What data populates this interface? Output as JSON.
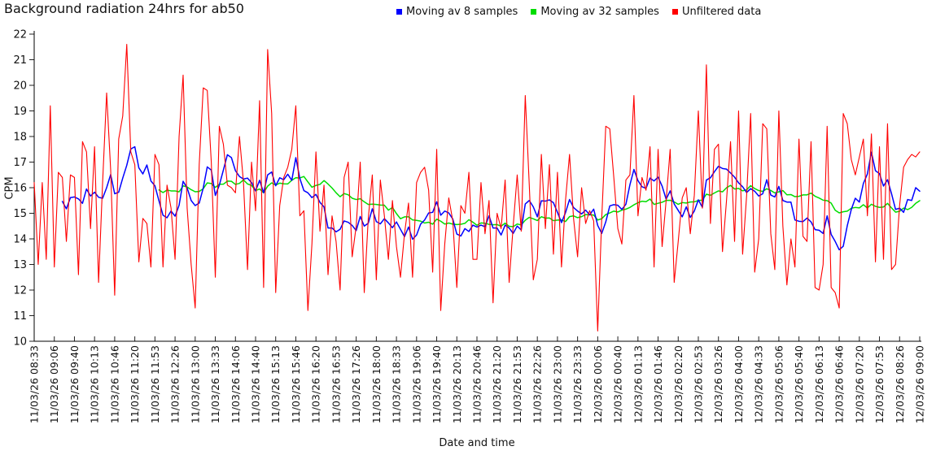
{
  "title": "Background radiation 24hrs for ab50",
  "chart_data": {
    "type": "line",
    "title": "Background radiation 24hrs for ab50",
    "xlabel": "Date and time",
    "ylabel": "CPM",
    "ylim": [
      10,
      22
    ],
    "ytick_step": 1,
    "grid": false,
    "legend_position": "top-center",
    "x_tick_labels": [
      "11/03/26 08:33",
      "11/03/26 09:06",
      "11/03/26 09:40",
      "11/03/26 10:13",
      "11/03/26 10:46",
      "11/03/26 11:20",
      "11/03/26 11:53",
      "11/03/26 12:26",
      "11/03/26 13:00",
      "11/03/26 13:33",
      "11/03/26 14:06",
      "11/03/26 14:40",
      "11/03/26 15:13",
      "11/03/26 15:46",
      "11/03/26 16:20",
      "11/03/26 16:53",
      "11/03/26 17:26",
      "11/03/26 18:00",
      "11/03/26 18:33",
      "11/03/26 19:06",
      "11/03/26 19:40",
      "11/03/26 20:13",
      "11/03/26 20:46",
      "11/03/26 21:20",
      "11/03/26 21:53",
      "11/03/26 22:26",
      "11/03/26 23:00",
      "11/03/26 23:33",
      "12/03/26 00:06",
      "12/03/26 00:40",
      "12/03/26 01:13",
      "12/03/26 01:46",
      "12/03/26 02:20",
      "12/03/26 02:53",
      "12/03/26 03:26",
      "12/03/26 04:00",
      "12/03/26 04:33",
      "12/03/26 05:06",
      "12/03/26 05:40",
      "12/03/26 06:13",
      "12/03/26 06:46",
      "12/03/26 07:20",
      "12/03/26 07:53",
      "12/03/26 08:26",
      "12/03/26 09:00"
    ],
    "samples_per_tick_interval": 5,
    "series": [
      {
        "name": "Moving av 8 samples",
        "color": "#0000ff",
        "derived": "moving_average",
        "window": 8,
        "source": "Unfiltered data"
      },
      {
        "name": "Moving av 32 samples",
        "color": "#00dd00",
        "derived": "moving_average",
        "window": 32,
        "source": "Unfiltered data"
      },
      {
        "name": "Unfiltered data",
        "color": "#ff0000",
        "values": [
          16.2,
          13.0,
          16.2,
          13.2,
          19.2,
          12.9,
          16.6,
          16.4,
          13.9,
          16.5,
          16.4,
          12.6,
          17.8,
          17.4,
          14.4,
          17.6,
          12.3,
          16.2,
          19.7,
          16.7,
          11.8,
          17.9,
          18.8,
          21.6,
          17.4,
          16.9,
          13.1,
          14.8,
          14.6,
          12.9,
          17.3,
          16.9,
          12.9,
          16.1,
          15.2,
          13.2,
          18.0,
          20.4,
          15.2,
          13.0,
          11.3,
          16.9,
          19.9,
          19.8,
          17.0,
          12.5,
          18.4,
          17.7,
          16.1,
          16.0,
          15.8,
          18.0,
          16.2,
          12.8,
          17.0,
          15.1,
          19.4,
          12.1,
          21.4,
          18.9,
          11.9,
          15.3,
          16.4,
          16.8,
          17.5,
          19.2,
          14.9,
          15.1,
          11.2,
          13.8,
          17.4,
          14.3,
          16.1,
          12.6,
          14.9,
          13.9,
          12.0,
          16.4,
          17.0,
          13.3,
          14.5,
          17.0,
          11.9,
          14.8,
          16.5,
          12.4,
          16.3,
          14.9,
          13.2,
          15.5,
          13.7,
          12.5,
          14.2,
          15.4,
          12.5,
          16.2,
          16.6,
          16.8,
          15.9,
          12.7,
          17.5,
          11.2,
          13.8,
          15.6,
          14.7,
          12.1,
          15.3,
          15.0,
          16.6,
          13.2,
          13.2,
          16.2,
          14.2,
          15.5,
          11.5,
          15.0,
          14.4,
          16.3,
          12.3,
          14.5,
          16.5,
          14.3,
          19.6,
          16.1,
          12.4,
          13.2,
          17.3,
          14.4,
          16.9,
          13.4,
          16.6,
          12.9,
          15.5,
          17.3,
          14.8,
          13.3,
          16.0,
          14.6,
          15.1,
          14.7,
          10.4,
          14.8,
          18.4,
          18.3,
          16.4,
          14.4,
          13.8,
          16.3,
          16.5,
          19.6,
          14.9,
          16.4,
          15.9,
          17.6,
          12.9,
          17.5,
          13.7,
          15.5,
          17.5,
          12.3,
          13.9,
          15.6,
          16.0,
          14.2,
          15.7,
          19.0,
          15.2,
          20.8,
          14.6,
          17.5,
          17.7,
          13.5,
          15.5,
          17.8,
          13.9,
          19.0,
          13.4,
          15.7,
          18.9,
          12.7,
          14.0,
          18.5,
          18.3,
          14.2,
          12.8,
          19.0,
          14.5,
          12.2,
          14.0,
          12.9,
          17.9,
          14.1,
          13.9,
          17.8,
          12.1,
          12.0,
          13.0,
          18.4,
          12.1,
          11.9,
          11.3,
          18.9,
          18.5,
          17.1,
          16.5,
          17.2,
          17.9,
          14.9,
          18.1,
          13.1,
          17.6,
          13.2,
          18.5,
          12.8,
          13.0,
          15.3,
          16.8,
          17.1,
          17.3,
          17.2,
          17.4
        ]
      }
    ]
  }
}
